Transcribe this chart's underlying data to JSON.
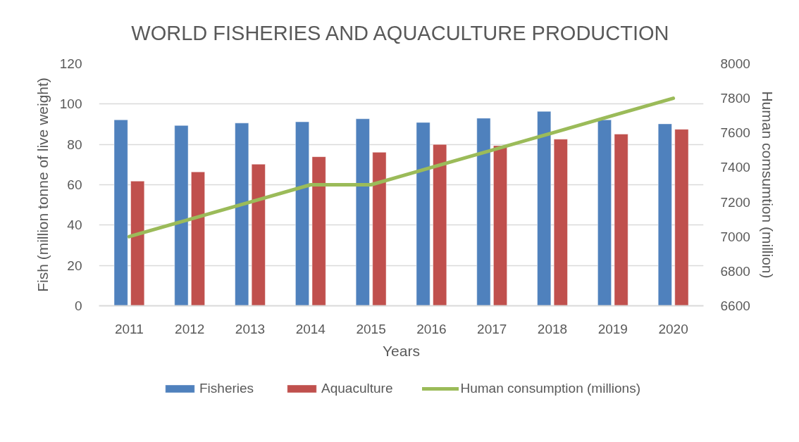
{
  "chart_data": {
    "type": "bar",
    "title": "WORLD FISHERIES AND AQUACULTURE PRODUCTION",
    "xlabel": "Years",
    "ylabel": "Fish (million tonne of live weight)",
    "y2label": "Human comsumtion (million)",
    "categories": [
      "2011",
      "2012",
      "2013",
      "2014",
      "2015",
      "2016",
      "2017",
      "2018",
      "2019",
      "2020"
    ],
    "series": [
      {
        "name": "Fisheries",
        "color": "#4f81bd",
        "values": [
          92.2,
          89.4,
          90.6,
          91.2,
          92.7,
          90.9,
          93.0,
          96.4,
          92.2,
          90.2
        ]
      },
      {
        "name": "Aquaculture",
        "color": "#c0504d",
        "values": [
          61.8,
          66.4,
          70.2,
          73.9,
          76.1,
          80.0,
          79.4,
          82.6,
          85.1,
          87.5
        ]
      },
      {
        "name": "Human consumption (millions)",
        "type": "line",
        "axis": "y2",
        "color": "#9bbb59",
        "values": [
          7000,
          7100,
          7200,
          7300,
          7300,
          7400,
          7500,
          7600,
          7700,
          7800
        ]
      }
    ],
    "ylim": [
      0,
      120
    ],
    "yticks": [
      0,
      20,
      40,
      60,
      80,
      100,
      120
    ],
    "y2lim": [
      6600,
      8000
    ],
    "y2ticks": [
      6600,
      6800,
      7000,
      7200,
      7400,
      7600,
      7800,
      8000
    ],
    "grid": "y",
    "legend": "bottom"
  }
}
